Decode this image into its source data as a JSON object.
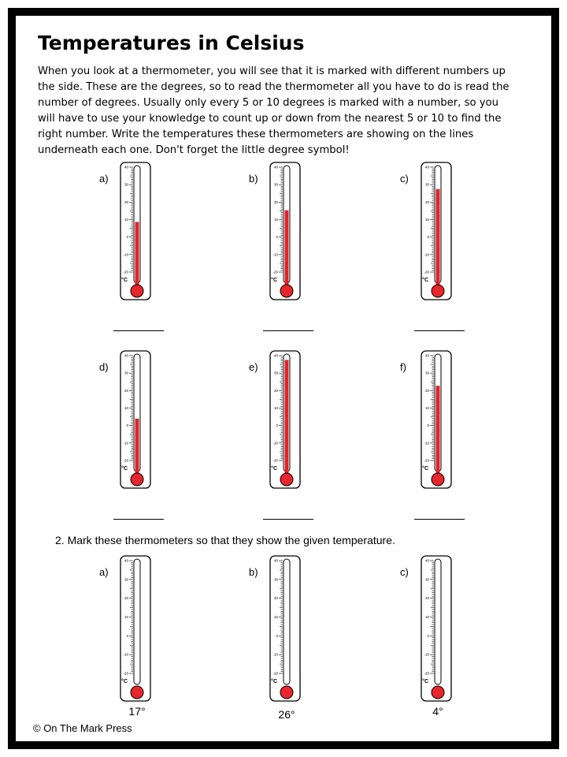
{
  "title": "Temperatures in Celsius",
  "intro": "When you look at a thermometer, you will see that it is marked with different numbers  up the side. These are the degrees, so to read the thermometer all you have to do is  read the number of degrees. Usually only every 5 or 10 degrees is marked with a  number, so you will have to use your knowledge to count up or down from the nearest  5 or 10 to find the right number. Write the temperatures these thermometers are  showing on the lines underneath each one. Don't forget the little degree symbol!",
  "scale_labels": [
    "40",
    "30",
    "20",
    "10",
    "0",
    "-10",
    "-20"
  ],
  "unit": "°C",
  "colors": {
    "mercury": "#e0242c",
    "bulb": "#e8262c"
  },
  "part1": [
    {
      "label": "a)",
      "fill_fraction": 0.52
    },
    {
      "label": "b)",
      "fill_fraction": 0.62
    },
    {
      "label": "c)",
      "fill_fraction": 0.8
    },
    {
      "label": "d)",
      "fill_fraction": 0.45
    },
    {
      "label": "e)",
      "fill_fraction": 0.95
    },
    {
      "label": "f)",
      "fill_fraction": 0.73
    }
  ],
  "question2": "2. Mark these thermometers so that they show the given temperature.",
  "part2": [
    {
      "label": "a)",
      "given": "17°"
    },
    {
      "label": "b)",
      "given": "26°"
    },
    {
      "label": "c)",
      "given": "4°"
    }
  ],
  "footer": "© On The Mark Press"
}
